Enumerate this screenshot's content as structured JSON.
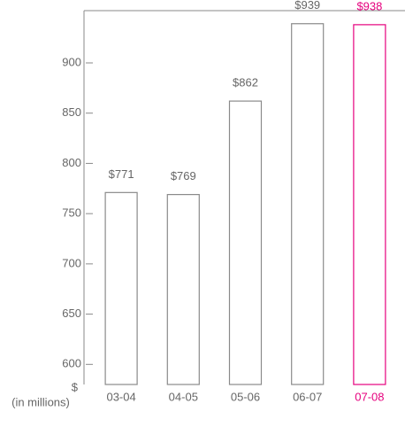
{
  "chart_data": {
    "type": "bar",
    "y_label": "$",
    "y_label_sub": "(in millions)",
    "categories": [
      "03-04",
      "04-05",
      "05-06",
      "06-07",
      "07-08"
    ],
    "values": [
      771,
      769,
      862,
      939,
      938
    ],
    "value_labels": [
      "$771",
      "$769",
      "$862",
      "$939",
      "$938"
    ],
    "colors": [
      "#8a8a8a",
      "#8a8a8a",
      "#8a8a8a",
      "#8a8a8a",
      "#e6007e"
    ],
    "ylim": [
      580,
      952
    ],
    "yticks": [
      600,
      650,
      700,
      750,
      800,
      850,
      900
    ],
    "grid": false
  }
}
